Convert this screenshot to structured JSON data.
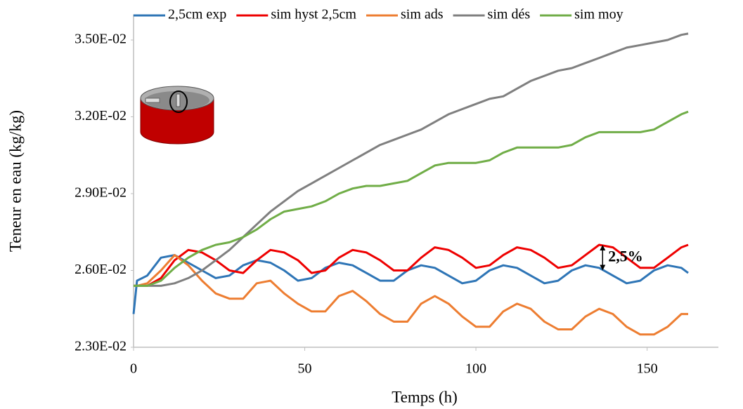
{
  "chart_data": {
    "type": "line",
    "x_label": "Temps (h)",
    "y_label": "Teneur en eau (kg/kg)",
    "x": [
      0,
      1,
      4,
      8,
      12,
      16,
      20,
      24,
      28,
      32,
      36,
      40,
      44,
      48,
      52,
      56,
      60,
      64,
      68,
      72,
      76,
      80,
      84,
      88,
      92,
      96,
      100,
      104,
      108,
      112,
      116,
      120,
      124,
      128,
      132,
      136,
      140,
      144,
      148,
      152,
      156,
      160,
      162
    ],
    "series": [
      {
        "name": "2,5cm exp",
        "color": "#2e75b6",
        "values": [
          0.0243,
          0.0256,
          0.0258,
          0.0265,
          0.0266,
          0.0263,
          0.026,
          0.0257,
          0.0258,
          0.0262,
          0.0264,
          0.0263,
          0.026,
          0.0256,
          0.0257,
          0.0261,
          0.0263,
          0.0262,
          0.0259,
          0.0256,
          0.0256,
          0.026,
          0.0262,
          0.0261,
          0.0258,
          0.0255,
          0.0256,
          0.026,
          0.0262,
          0.0261,
          0.0258,
          0.0255,
          0.0256,
          0.026,
          0.0262,
          0.0261,
          0.0258,
          0.0255,
          0.0256,
          0.026,
          0.0262,
          0.0261,
          0.0259
        ]
      },
      {
        "name": "sim hyst 2,5cm",
        "color": "#ee0000",
        "values": [
          0.0254,
          0.0254,
          0.0254,
          0.0257,
          0.0264,
          0.0268,
          0.0267,
          0.0264,
          0.026,
          0.0259,
          0.0264,
          0.0268,
          0.0267,
          0.0264,
          0.0259,
          0.026,
          0.0265,
          0.0268,
          0.0267,
          0.0264,
          0.026,
          0.026,
          0.0265,
          0.0269,
          0.0268,
          0.0265,
          0.0261,
          0.0262,
          0.0266,
          0.0269,
          0.0268,
          0.0265,
          0.0261,
          0.0262,
          0.0266,
          0.027,
          0.0269,
          0.0265,
          0.0261,
          0.0261,
          0.0265,
          0.0269,
          0.027
        ]
      },
      {
        "name": "sim ads",
        "color": "#ed7d31",
        "values": [
          0.0254,
          0.0254,
          0.0255,
          0.026,
          0.0266,
          0.0262,
          0.0256,
          0.0251,
          0.0249,
          0.0249,
          0.0255,
          0.0256,
          0.0251,
          0.0247,
          0.0244,
          0.0244,
          0.025,
          0.0252,
          0.0248,
          0.0243,
          0.024,
          0.024,
          0.0247,
          0.025,
          0.0247,
          0.0242,
          0.0238,
          0.0238,
          0.0244,
          0.0247,
          0.0245,
          0.024,
          0.0237,
          0.0237,
          0.0242,
          0.0245,
          0.0243,
          0.0238,
          0.0235,
          0.0235,
          0.0238,
          0.0243,
          0.0243
        ]
      },
      {
        "name": "sim dés",
        "color": "#7f7f7f",
        "values": [
          0.0254,
          0.0254,
          0.0254,
          0.0254,
          0.0255,
          0.0257,
          0.026,
          0.0264,
          0.0268,
          0.0273,
          0.0278,
          0.0283,
          0.0287,
          0.0291,
          0.0294,
          0.0297,
          0.03,
          0.0303,
          0.0306,
          0.0309,
          0.0311,
          0.0313,
          0.0315,
          0.0318,
          0.0321,
          0.0323,
          0.0325,
          0.0327,
          0.0328,
          0.0331,
          0.0334,
          0.0336,
          0.0338,
          0.0339,
          0.0341,
          0.0343,
          0.0345,
          0.0347,
          0.0348,
          0.0349,
          0.035,
          0.0352,
          0.03525
        ]
      },
      {
        "name": "sim moy",
        "color": "#70ad47",
        "values": [
          0.0254,
          0.0254,
          0.0254,
          0.0256,
          0.0261,
          0.0265,
          0.0268,
          0.027,
          0.0271,
          0.0273,
          0.0276,
          0.028,
          0.0283,
          0.0284,
          0.0285,
          0.0287,
          0.029,
          0.0292,
          0.0293,
          0.0293,
          0.0294,
          0.0295,
          0.0298,
          0.0301,
          0.0302,
          0.0302,
          0.0302,
          0.0303,
          0.0306,
          0.0308,
          0.0308,
          0.0308,
          0.0308,
          0.0309,
          0.0312,
          0.0314,
          0.0314,
          0.0314,
          0.0314,
          0.0315,
          0.0318,
          0.0321,
          0.0322
        ]
      }
    ],
    "xlim": [
      0,
      170
    ],
    "xticks": [
      0,
      50,
      100,
      150
    ],
    "ylim": [
      0.023,
      0.036
    ],
    "yticks": [
      {
        "value": 0.023,
        "label": "2.30E-02"
      },
      {
        "value": 0.026,
        "label": "2.60E-02"
      },
      {
        "value": 0.029,
        "label": "2.90E-02"
      },
      {
        "value": 0.032,
        "label": "3.20E-02"
      },
      {
        "value": 0.035,
        "label": "3.50E-02"
      }
    ],
    "grid": false,
    "legend": "top",
    "annotations": [
      {
        "text": "2,5%",
        "x": 137,
        "from": 0.026,
        "to": 0.027
      }
    ]
  }
}
